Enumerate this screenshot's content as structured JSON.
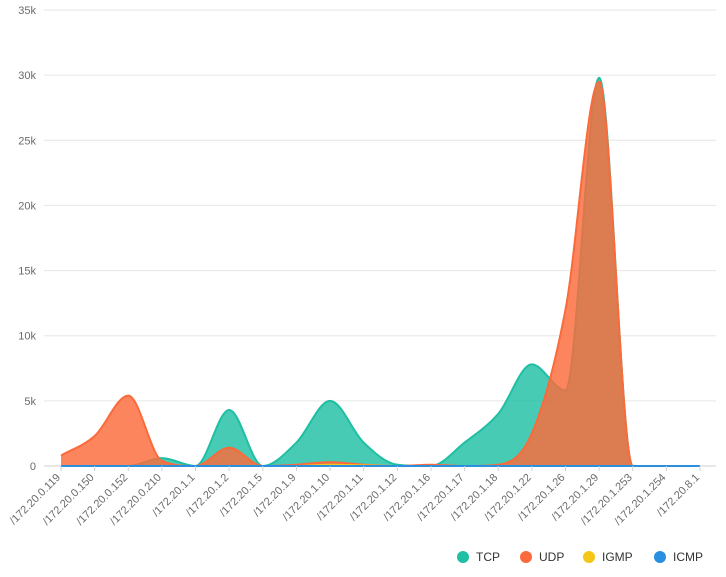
{
  "chart_data": {
    "type": "area",
    "title": "",
    "xlabel": "",
    "ylabel": "",
    "ylim": [
      0,
      35000
    ],
    "y_ticks": [
      "0",
      "5k",
      "10k",
      "15k",
      "20k",
      "25k",
      "30k",
      "35k"
    ],
    "grid": true,
    "legend_position": "bottom-right",
    "categories": [
      "/172.20.0.119",
      "/172.20.0.150",
      "/172.20.0.152",
      "/172.20.0.210",
      "/172.20.1.1",
      "/172.20.1.2",
      "/172.20.1.5",
      "/172.20.1.9",
      "/172.20.1.10",
      "/172.20.1.11",
      "/172.20.1.12",
      "/172.20.1.16",
      "/172.20.1.17",
      "/172.20.1.18",
      "/172.20.1.22",
      "/172.20.1.26",
      "/172.20.1.29",
      "/172.20.1.253",
      "/172.20.1.254",
      "/172.20.8.1"
    ],
    "series": [
      {
        "name": "TCP",
        "color": "#1fbfa4",
        "values": [
          0,
          0,
          0,
          600,
          0,
          4300,
          0,
          1800,
          5000,
          1800,
          100,
          0,
          1800,
          4000,
          7800,
          5800,
          29800,
          0,
          0,
          0
        ]
      },
      {
        "name": "UDP",
        "color": "#fb6a3b",
        "values": [
          800,
          2300,
          5400,
          400,
          0,
          1400,
          0,
          100,
          300,
          100,
          0,
          100,
          0,
          100,
          2500,
          12000,
          29500,
          0,
          0,
          0
        ]
      },
      {
        "name": "IGMP",
        "color": "#f5c518",
        "values": [
          0,
          0,
          0,
          0,
          0,
          0,
          0,
          0,
          100,
          50,
          0,
          0,
          0,
          0,
          0,
          0,
          0,
          0,
          0,
          0
        ]
      },
      {
        "name": "ICMP",
        "color": "#2b8fe0",
        "values": [
          0,
          0,
          0,
          0,
          0,
          0,
          0,
          0,
          0,
          0,
          0,
          0,
          0,
          0,
          0,
          0,
          0,
          0,
          0,
          0
        ]
      }
    ]
  }
}
